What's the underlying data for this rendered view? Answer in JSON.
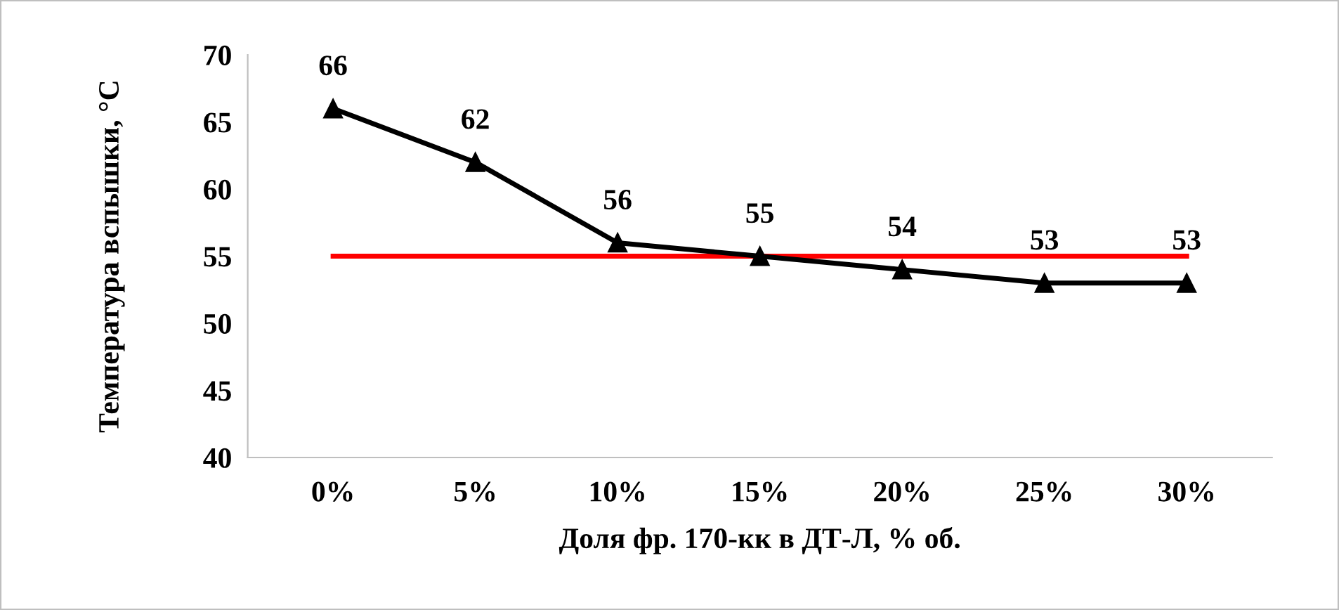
{
  "chart_data": {
    "type": "line",
    "xlabel": "Доля фр. 170-кк в ДТ-Л, % об.",
    "ylabel": "Температура вспышки, °С",
    "categories": [
      "0%",
      "5%",
      "10%",
      "15%",
      "20%",
      "25%",
      "30%"
    ],
    "series": [
      {
        "color": "#000000",
        "marker": "triangle",
        "values": [
          66,
          62,
          56,
          55,
          54,
          53,
          53
        ],
        "value_labels": [
          "66",
          "62",
          "56",
          "55",
          "54",
          "53",
          "53"
        ]
      },
      {
        "color": "#ff0000",
        "marker": "none",
        "values": [
          55,
          55,
          55,
          55,
          55,
          55,
          55
        ]
      }
    ],
    "ylim": [
      40,
      70
    ],
    "yticks": [
      40,
      45,
      50,
      55,
      60,
      65,
      70
    ],
    "grid": false,
    "line_style": "solid"
  }
}
